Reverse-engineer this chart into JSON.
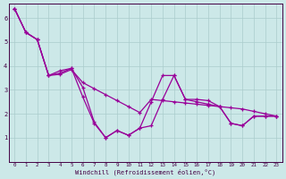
{
  "xlabel": "Windchill (Refroidissement éolien,°C)",
  "background_color": "#cce8e8",
  "grid_color": "#aacccc",
  "line_color": "#990099",
  "xlim": [
    -0.5,
    23.5
  ],
  "ylim": [
    0,
    6.6
  ],
  "xticks": [
    0,
    1,
    2,
    3,
    4,
    5,
    6,
    7,
    8,
    9,
    10,
    11,
    12,
    13,
    14,
    15,
    16,
    17,
    18,
    19,
    20,
    21,
    22,
    23
  ],
  "yticks": [
    1,
    2,
    3,
    4,
    5,
    6
  ],
  "series1_x": [
    0,
    1,
    2,
    3,
    4,
    5,
    6,
    7,
    8,
    9,
    10,
    11,
    12,
    13,
    14,
    15,
    16,
    17,
    18,
    19,
    20,
    21,
    22,
    23
  ],
  "series1_y": [
    6.4,
    5.4,
    5.1,
    3.6,
    3.8,
    3.9,
    2.7,
    1.6,
    1.0,
    1.3,
    1.1,
    1.4,
    1.5,
    2.6,
    3.6,
    2.6,
    2.5,
    2.4,
    2.3,
    1.6,
    1.5,
    1.9,
    1.9,
    1.9
  ],
  "series2_x": [
    0,
    1,
    2,
    3,
    4,
    5,
    6,
    7,
    8,
    9,
    10,
    11,
    12,
    13,
    14,
    15,
    16,
    17,
    18,
    19,
    20,
    21,
    22,
    23
  ],
  "series2_y": [
    6.4,
    5.4,
    5.1,
    3.6,
    3.65,
    3.85,
    3.3,
    3.05,
    2.8,
    2.55,
    2.3,
    2.05,
    2.6,
    2.55,
    2.5,
    2.45,
    2.4,
    2.35,
    2.3,
    2.25,
    2.2,
    2.1,
    2.0,
    1.9
  ],
  "series3_x": [
    0,
    1,
    2,
    3,
    4,
    5,
    6,
    7,
    8,
    9,
    10,
    11,
    12,
    13,
    14,
    15,
    16,
    17,
    18,
    19,
    20,
    21,
    22,
    23
  ],
  "series3_y": [
    6.4,
    5.4,
    5.1,
    3.6,
    3.7,
    3.9,
    3.1,
    1.65,
    1.0,
    1.3,
    1.1,
    1.4,
    2.5,
    3.6,
    3.6,
    2.6,
    2.6,
    2.55,
    2.3,
    1.6,
    1.5,
    1.9,
    1.9,
    1.9
  ]
}
